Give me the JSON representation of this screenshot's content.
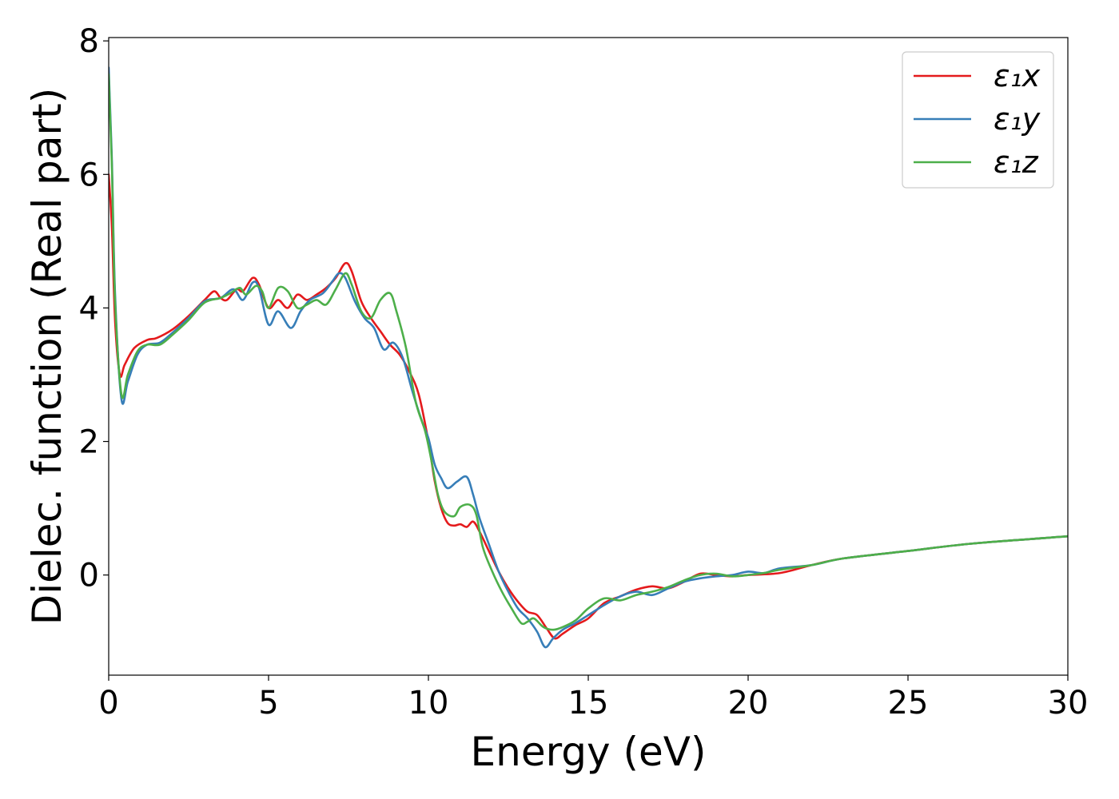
{
  "chart_data": {
    "type": "line",
    "title": "",
    "xlabel": "Energy (eV)",
    "ylabel": "Dielec. function (Real part)",
    "xlim": [
      0,
      30
    ],
    "ylim": [
      -1.5,
      8.05
    ],
    "xticks": [
      "0",
      "5",
      "10",
      "15",
      "20",
      "25",
      "30"
    ],
    "yticks": [
      "0",
      "2",
      "4",
      "6",
      "8"
    ],
    "grid": false,
    "legend_position": "top-right",
    "series": [
      {
        "name": "ε₁x",
        "color": "#e41a1c",
        "points": [
          [
            0,
            6.0
          ],
          [
            0.1,
            5.2
          ],
          [
            0.2,
            3.8
          ],
          [
            0.35,
            3.0
          ],
          [
            0.5,
            3.15
          ],
          [
            0.8,
            3.4
          ],
          [
            1.2,
            3.52
          ],
          [
            1.5,
            3.55
          ],
          [
            2.0,
            3.68
          ],
          [
            2.5,
            3.88
          ],
          [
            3.0,
            4.12
          ],
          [
            3.3,
            4.25
          ],
          [
            3.5,
            4.15
          ],
          [
            3.7,
            4.12
          ],
          [
            4.0,
            4.28
          ],
          [
            4.2,
            4.25
          ],
          [
            4.5,
            4.45
          ],
          [
            4.7,
            4.35
          ],
          [
            5.0,
            4.0
          ],
          [
            5.3,
            4.12
          ],
          [
            5.6,
            4.0
          ],
          [
            5.9,
            4.2
          ],
          [
            6.2,
            4.12
          ],
          [
            6.5,
            4.2
          ],
          [
            6.8,
            4.3
          ],
          [
            7.1,
            4.45
          ],
          [
            7.4,
            4.67
          ],
          [
            7.6,
            4.55
          ],
          [
            7.9,
            4.1
          ],
          [
            8.2,
            3.85
          ],
          [
            8.5,
            3.65
          ],
          [
            8.8,
            3.45
          ],
          [
            9.1,
            3.3
          ],
          [
            9.4,
            3.05
          ],
          [
            9.7,
            2.7
          ],
          [
            10.0,
            2.0
          ],
          [
            10.2,
            1.4
          ],
          [
            10.4,
            1.0
          ],
          [
            10.6,
            0.78
          ],
          [
            10.8,
            0.74
          ],
          [
            11.0,
            0.76
          ],
          [
            11.2,
            0.72
          ],
          [
            11.4,
            0.8
          ],
          [
            11.6,
            0.65
          ],
          [
            11.9,
            0.35
          ],
          [
            12.2,
            0.05
          ],
          [
            12.5,
            -0.2
          ],
          [
            12.8,
            -0.4
          ],
          [
            13.1,
            -0.55
          ],
          [
            13.4,
            -0.6
          ],
          [
            13.7,
            -0.8
          ],
          [
            13.95,
            -0.95
          ],
          [
            14.2,
            -0.88
          ],
          [
            14.6,
            -0.75
          ],
          [
            15.0,
            -0.65
          ],
          [
            15.5,
            -0.42
          ],
          [
            16.0,
            -0.32
          ],
          [
            16.5,
            -0.22
          ],
          [
            17.0,
            -0.17
          ],
          [
            17.5,
            -0.2
          ],
          [
            18.0,
            -0.1
          ],
          [
            18.5,
            0.02
          ],
          [
            19.0,
            0.0
          ],
          [
            19.5,
            -0.02
          ],
          [
            20.0,
            0.0
          ],
          [
            21.0,
            0.03
          ],
          [
            22.0,
            0.15
          ],
          [
            23.0,
            0.25
          ],
          [
            25.0,
            0.36
          ],
          [
            27.0,
            0.47
          ],
          [
            30.0,
            0.58
          ]
        ]
      },
      {
        "name": "ε₁y",
        "color": "#377eb8",
        "points": [
          [
            0,
            7.6
          ],
          [
            0.1,
            6.2
          ],
          [
            0.2,
            4.2
          ],
          [
            0.4,
            2.63
          ],
          [
            0.6,
            2.9
          ],
          [
            0.9,
            3.3
          ],
          [
            1.2,
            3.45
          ],
          [
            1.6,
            3.48
          ],
          [
            2.0,
            3.63
          ],
          [
            2.5,
            3.85
          ],
          [
            3.0,
            4.1
          ],
          [
            3.5,
            4.15
          ],
          [
            3.9,
            4.28
          ],
          [
            4.2,
            4.12
          ],
          [
            4.5,
            4.38
          ],
          [
            4.7,
            4.3
          ],
          [
            5.0,
            3.75
          ],
          [
            5.3,
            3.95
          ],
          [
            5.7,
            3.7
          ],
          [
            6.0,
            3.95
          ],
          [
            6.3,
            4.12
          ],
          [
            6.7,
            4.22
          ],
          [
            7.0,
            4.4
          ],
          [
            7.2,
            4.52
          ],
          [
            7.4,
            4.45
          ],
          [
            7.7,
            4.1
          ],
          [
            8.0,
            3.85
          ],
          [
            8.3,
            3.7
          ],
          [
            8.6,
            3.38
          ],
          [
            8.9,
            3.48
          ],
          [
            9.2,
            3.25
          ],
          [
            9.5,
            2.75
          ],
          [
            9.8,
            2.3
          ],
          [
            10.0,
            2.05
          ],
          [
            10.2,
            1.65
          ],
          [
            10.4,
            1.45
          ],
          [
            10.6,
            1.3
          ],
          [
            10.9,
            1.4
          ],
          [
            11.2,
            1.47
          ],
          [
            11.4,
            1.2
          ],
          [
            11.6,
            0.85
          ],
          [
            11.9,
            0.45
          ],
          [
            12.2,
            0.05
          ],
          [
            12.5,
            -0.25
          ],
          [
            12.8,
            -0.5
          ],
          [
            13.1,
            -0.65
          ],
          [
            13.4,
            -0.85
          ],
          [
            13.65,
            -1.08
          ],
          [
            13.9,
            -0.95
          ],
          [
            14.2,
            -0.82
          ],
          [
            14.6,
            -0.72
          ],
          [
            15.0,
            -0.6
          ],
          [
            15.5,
            -0.45
          ],
          [
            16.0,
            -0.32
          ],
          [
            16.5,
            -0.25
          ],
          [
            17.0,
            -0.3
          ],
          [
            17.5,
            -0.2
          ],
          [
            18.0,
            -0.1
          ],
          [
            18.5,
            -0.05
          ],
          [
            19.0,
            -0.02
          ],
          [
            19.5,
            0.0
          ],
          [
            20.0,
            0.05
          ],
          [
            20.5,
            0.03
          ],
          [
            21.0,
            0.1
          ],
          [
            22.0,
            0.15
          ],
          [
            23.0,
            0.25
          ],
          [
            25.0,
            0.36
          ],
          [
            27.0,
            0.47
          ],
          [
            30.0,
            0.58
          ]
        ]
      },
      {
        "name": "ε₁z",
        "color": "#4daf4a",
        "points": [
          [
            0,
            7.5
          ],
          [
            0.1,
            6.1
          ],
          [
            0.2,
            4.1
          ],
          [
            0.4,
            2.7
          ],
          [
            0.6,
            3.0
          ],
          [
            0.9,
            3.35
          ],
          [
            1.2,
            3.45
          ],
          [
            1.6,
            3.45
          ],
          [
            2.0,
            3.6
          ],
          [
            2.5,
            3.82
          ],
          [
            3.0,
            4.08
          ],
          [
            3.5,
            4.15
          ],
          [
            3.8,
            4.22
          ],
          [
            4.1,
            4.3
          ],
          [
            4.3,
            4.2
          ],
          [
            4.6,
            4.33
          ],
          [
            4.8,
            4.25
          ],
          [
            5.0,
            4.0
          ],
          [
            5.3,
            4.3
          ],
          [
            5.6,
            4.25
          ],
          [
            5.9,
            4.0
          ],
          [
            6.2,
            4.05
          ],
          [
            6.5,
            4.12
          ],
          [
            6.8,
            4.05
          ],
          [
            7.1,
            4.28
          ],
          [
            7.4,
            4.52
          ],
          [
            7.6,
            4.35
          ],
          [
            7.9,
            3.95
          ],
          [
            8.2,
            3.85
          ],
          [
            8.5,
            4.12
          ],
          [
            8.8,
            4.22
          ],
          [
            9.0,
            3.95
          ],
          [
            9.3,
            3.4
          ],
          [
            9.6,
            2.6
          ],
          [
            9.9,
            2.15
          ],
          [
            10.1,
            1.7
          ],
          [
            10.3,
            1.2
          ],
          [
            10.5,
            0.95
          ],
          [
            10.8,
            0.88
          ],
          [
            11.0,
            1.02
          ],
          [
            11.3,
            1.05
          ],
          [
            11.5,
            0.9
          ],
          [
            11.7,
            0.42
          ],
          [
            12.0,
            0.05
          ],
          [
            12.3,
            -0.25
          ],
          [
            12.6,
            -0.5
          ],
          [
            12.9,
            -0.72
          ],
          [
            13.1,
            -0.7
          ],
          [
            13.3,
            -0.65
          ],
          [
            13.6,
            -0.78
          ],
          [
            13.9,
            -0.82
          ],
          [
            14.2,
            -0.78
          ],
          [
            14.6,
            -0.68
          ],
          [
            15.0,
            -0.5
          ],
          [
            15.5,
            -0.35
          ],
          [
            16.0,
            -0.38
          ],
          [
            16.5,
            -0.3
          ],
          [
            17.0,
            -0.25
          ],
          [
            17.5,
            -0.18
          ],
          [
            18.0,
            -0.08
          ],
          [
            18.5,
            0.0
          ],
          [
            19.0,
            0.02
          ],
          [
            19.5,
            -0.02
          ],
          [
            20.0,
            0.0
          ],
          [
            20.5,
            0.03
          ],
          [
            21.0,
            0.08
          ],
          [
            22.0,
            0.15
          ],
          [
            23.0,
            0.25
          ],
          [
            25.0,
            0.36
          ],
          [
            27.0,
            0.47
          ],
          [
            30.0,
            0.58
          ]
        ]
      }
    ]
  }
}
